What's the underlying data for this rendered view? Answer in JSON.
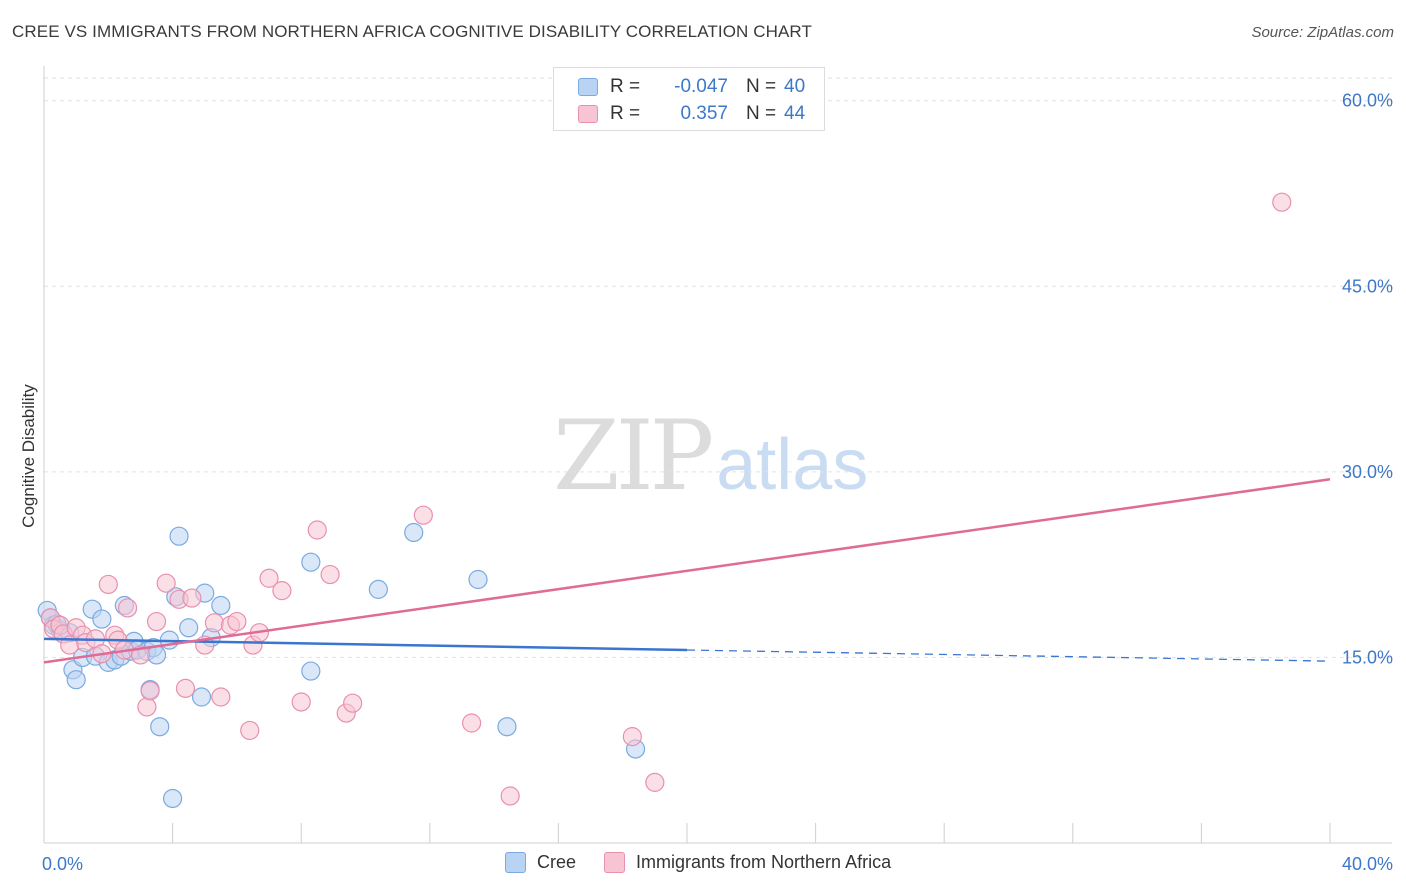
{
  "title": "CREE VS IMMIGRANTS FROM NORTHERN AFRICA COGNITIVE DISABILITY CORRELATION CHART",
  "source": "Source: ZipAtlas.com",
  "watermark": {
    "zip": "ZIP",
    "atlas": "atlas"
  },
  "stats": {
    "r_label": "R =",
    "n_label": "N =",
    "cree": {
      "r": "-0.047",
      "n": "40"
    },
    "immigrants": {
      "r": "0.357",
      "n": "44"
    }
  },
  "legend": {
    "cree": "Cree",
    "immigrants": "Immigrants from Northern Africa"
  },
  "colors": {
    "cree_fill": "#b9d3f2",
    "cree_stroke": "#7aaae0",
    "cree_line": "#3a76cf",
    "imm_fill": "#f7c4d4",
    "imm_stroke": "#e890ad",
    "imm_line": "#e06b96",
    "tick_text": "#3d78c8",
    "grid": "#e2e2e2"
  },
  "chart_data": {
    "type": "scatter",
    "title": "CREE VS IMMIGRANTS FROM NORTHERN AFRICA COGNITIVE DISABILITY CORRELATION CHART",
    "xlabel": "",
    "ylabel": "Cognitive Disability",
    "xlim": [
      0,
      40
    ],
    "ylim": [
      0,
      62
    ],
    "x_ticks": [
      0,
      40
    ],
    "x_tick_labels": [
      "0.0%",
      "40.0%"
    ],
    "y_ticks": [
      15,
      30,
      45,
      60
    ],
    "y_tick_labels": [
      "15.0%",
      "30.0%",
      "45.0%",
      "60.0%"
    ],
    "grid": true,
    "legend_position": "bottom-center",
    "series": [
      {
        "name": "Cree",
        "points": [
          [
            0.1,
            18.8
          ],
          [
            0.2,
            18.2
          ],
          [
            0.3,
            17.6
          ],
          [
            0.5,
            17.2
          ],
          [
            0.8,
            17.0
          ],
          [
            0.9,
            14.0
          ],
          [
            1.0,
            13.2
          ],
          [
            1.2,
            15.0
          ],
          [
            1.5,
            18.9
          ],
          [
            1.6,
            15.1
          ],
          [
            1.8,
            18.1
          ],
          [
            2.0,
            14.6
          ],
          [
            2.2,
            14.8
          ],
          [
            2.4,
            15.1
          ],
          [
            2.5,
            19.2
          ],
          [
            2.7,
            15.5
          ],
          [
            2.8,
            16.3
          ],
          [
            2.9,
            15.6
          ],
          [
            3.2,
            15.5
          ],
          [
            3.3,
            12.4
          ],
          [
            3.4,
            15.8
          ],
          [
            3.5,
            15.2
          ],
          [
            3.6,
            9.4
          ],
          [
            3.9,
            16.4
          ],
          [
            4.1,
            19.9
          ],
          [
            4.2,
            24.8
          ],
          [
            4.5,
            17.4
          ],
          [
            4.9,
            11.8
          ],
          [
            5.0,
            20.2
          ],
          [
            5.2,
            16.6
          ],
          [
            5.5,
            19.2
          ],
          [
            8.3,
            22.7
          ],
          [
            8.3,
            13.9
          ],
          [
            10.4,
            20.5
          ],
          [
            11.5,
            25.1
          ],
          [
            13.5,
            21.3
          ],
          [
            14.4,
            9.4
          ],
          [
            18.4,
            7.6
          ],
          [
            4.0,
            3.6
          ],
          [
            0.4,
            17.7
          ]
        ],
        "trend": {
          "x": [
            0,
            20
          ],
          "y": [
            16.5,
            15.6
          ],
          "dashed_extension_to": [
            40,
            14.7
          ]
        }
      },
      {
        "name": "Immigrants from Northern Africa",
        "points": [
          [
            0.2,
            18.2
          ],
          [
            0.3,
            17.3
          ],
          [
            0.5,
            17.6
          ],
          [
            0.6,
            16.9
          ],
          [
            0.8,
            16.0
          ],
          [
            1.0,
            17.4
          ],
          [
            1.2,
            16.8
          ],
          [
            1.3,
            16.2
          ],
          [
            1.6,
            16.5
          ],
          [
            1.8,
            15.3
          ],
          [
            2.0,
            20.9
          ],
          [
            2.2,
            16.8
          ],
          [
            2.3,
            16.4
          ],
          [
            2.5,
            15.6
          ],
          [
            2.6,
            19.0
          ],
          [
            3.0,
            15.2
          ],
          [
            3.2,
            11.0
          ],
          [
            3.3,
            12.3
          ],
          [
            3.5,
            17.9
          ],
          [
            3.8,
            21.0
          ],
          [
            4.2,
            19.7
          ],
          [
            4.4,
            12.5
          ],
          [
            4.6,
            19.8
          ],
          [
            5.0,
            16.0
          ],
          [
            5.3,
            17.8
          ],
          [
            5.5,
            11.8
          ],
          [
            5.8,
            17.6
          ],
          [
            6.0,
            17.9
          ],
          [
            6.4,
            9.1
          ],
          [
            6.5,
            16.0
          ],
          [
            6.7,
            17.0
          ],
          [
            7.0,
            21.4
          ],
          [
            7.4,
            20.4
          ],
          [
            8.0,
            11.4
          ],
          [
            8.5,
            25.3
          ],
          [
            8.9,
            21.7
          ],
          [
            9.4,
            10.5
          ],
          [
            9.6,
            11.3
          ],
          [
            11.8,
            26.5
          ],
          [
            13.3,
            9.7
          ],
          [
            14.5,
            3.8
          ],
          [
            18.3,
            8.6
          ],
          [
            19.0,
            4.9
          ],
          [
            38.5,
            51.8
          ]
        ],
        "trend": {
          "x": [
            0,
            40
          ],
          "y": [
            14.6,
            29.4
          ]
        }
      }
    ]
  }
}
